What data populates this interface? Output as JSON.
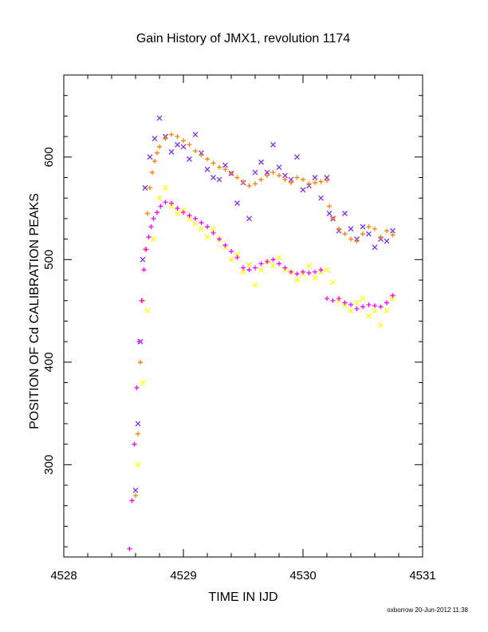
{
  "chart_data": {
    "type": "scatter",
    "title": "Gain History of JMX1, revolution 1174",
    "xlabel": "TIME IN IJD",
    "ylabel": "POSITION OF Cd CALIBRATION PEAKS",
    "xlim": [
      4528,
      4531
    ],
    "ylim": [
      210,
      680
    ],
    "xticks": [
      4528,
      4529,
      4530,
      4531
    ],
    "yticks": [
      300,
      400,
      500,
      600
    ],
    "grid": false,
    "series": [
      {
        "color": "#7f2fef",
        "marker": "x",
        "x": [
          4528.6,
          4528.62,
          4528.64,
          4528.66,
          4528.68,
          4528.72,
          4528.76,
          4528.8,
          4528.85,
          4528.9,
          4528.95,
          4529.0,
          4529.05,
          4529.1,
          4529.15,
          4529.2,
          4529.25,
          4529.3,
          4529.35,
          4529.4,
          4529.45,
          4529.5,
          4529.55,
          4529.6,
          4529.65,
          4529.7,
          4529.75,
          4529.8,
          4529.85,
          4529.9,
          4529.95,
          4530.0,
          4530.05,
          4530.1,
          4530.15,
          4530.2,
          4530.22,
          4530.25,
          4530.3,
          4530.35,
          4530.4,
          4530.45,
          4530.5,
          4530.55,
          4530.6,
          4530.65,
          4530.7,
          4530.75
        ],
        "y": [
          275,
          340,
          420,
          500,
          570,
          600,
          618,
          638,
          620,
          605,
          612,
          610,
          598,
          622,
          604,
          588,
          580,
          578,
          592,
          584,
          555,
          575,
          540,
          585,
          595,
          585,
          612,
          590,
          582,
          578,
          600,
          568,
          572,
          580,
          560,
          580,
          545,
          540,
          528,
          545,
          530,
          520,
          532,
          525,
          512,
          520,
          518,
          528
        ]
      },
      {
        "color": "#ff7f00",
        "marker": "+",
        "x": [
          4528.6,
          4528.62,
          4528.64,
          4528.66,
          4528.68,
          4528.7,
          4528.72,
          4528.74,
          4528.76,
          4528.78,
          4528.8,
          4528.85,
          4528.9,
          4528.95,
          4529.0,
          4529.05,
          4529.1,
          4529.15,
          4529.2,
          4529.25,
          4529.3,
          4529.35,
          4529.4,
          4529.45,
          4529.5,
          4529.55,
          4529.6,
          4529.65,
          4529.7,
          4529.75,
          4529.8,
          4529.85,
          4529.9,
          4529.95,
          4530.0,
          4530.05,
          4530.1,
          4530.15,
          4530.2,
          4530.22,
          4530.25,
          4530.3,
          4530.35,
          4530.4,
          4530.45,
          4530.5,
          4530.55,
          4530.6,
          4530.65,
          4530.7,
          4530.75
        ],
        "y": [
          270,
          330,
          400,
          460,
          510,
          545,
          570,
          585,
          596,
          604,
          610,
          618,
          622,
          620,
          616,
          612,
          606,
          602,
          598,
          594,
          590,
          588,
          584,
          580,
          576,
          572,
          574,
          578,
          582,
          585,
          582,
          578,
          575,
          580,
          578,
          574,
          575,
          576,
          577,
          552,
          540,
          530,
          525,
          520,
          518,
          525,
          532,
          530,
          522,
          528,
          524
        ]
      },
      {
        "color": "#ffff00",
        "marker": "x",
        "x": [
          4528.62,
          4528.66,
          4528.7,
          4528.75,
          4528.8,
          4528.85,
          4528.9,
          4528.95,
          4529.0,
          4529.05,
          4529.1,
          4529.15,
          4529.2,
          4529.25,
          4529.3,
          4529.35,
          4529.4,
          4529.45,
          4529.5,
          4529.55,
          4529.6,
          4529.65,
          4529.7,
          4529.75,
          4529.8,
          4529.85,
          4529.9,
          4529.95,
          4530.0,
          4530.05,
          4530.1,
          4530.15,
          4530.2,
          4530.25,
          4530.3,
          4530.35,
          4530.4,
          4530.45,
          4530.5,
          4530.55,
          4530.6,
          4530.65,
          4530.7,
          4530.75
        ],
        "y": [
          300,
          380,
          450,
          520,
          560,
          570,
          552,
          545,
          548,
          540,
          535,
          530,
          522,
          530,
          520,
          512,
          500,
          505,
          488,
          495,
          475,
          490,
          498,
          494,
          502,
          490,
          488,
          480,
          486,
          494,
          482,
          488,
          490,
          478,
          460,
          455,
          450,
          458,
          462,
          445,
          450,
          436,
          450,
          462
        ]
      },
      {
        "color": "#ff00ff",
        "marker": "+",
        "x": [
          4528.55,
          4528.57,
          4528.59,
          4528.61,
          4528.63,
          4528.65,
          4528.67,
          4528.69,
          4528.71,
          4528.73,
          4528.75,
          4528.78,
          4528.81,
          4528.85,
          4528.9,
          4528.95,
          4529.0,
          4529.05,
          4529.1,
          4529.15,
          4529.2,
          4529.25,
          4529.3,
          4529.35,
          4529.4,
          4529.45,
          4529.5,
          4529.55,
          4529.6,
          4529.65,
          4529.7,
          4529.75,
          4529.8,
          4529.85,
          4529.9,
          4529.95,
          4530.0,
          4530.05,
          4530.1,
          4530.15,
          4530.2,
          4530.25,
          4530.3,
          4530.35,
          4530.4,
          4530.45,
          4530.5,
          4530.55,
          4530.6,
          4530.65,
          4530.7,
          4530.75
        ],
        "y": [
          218,
          265,
          320,
          375,
          420,
          460,
          490,
          510,
          522,
          532,
          540,
          546,
          552,
          556,
          555,
          550,
          546,
          543,
          540,
          536,
          532,
          526,
          520,
          514,
          508,
          502,
          492,
          490,
          492,
          496,
          498,
          500,
          496,
          492,
          488,
          486,
          488,
          487,
          488,
          490,
          462,
          460,
          462,
          458,
          456,
          452,
          454,
          456,
          455,
          454,
          458,
          465
        ]
      }
    ]
  },
  "footer": "oxborrow 20-Jun-2012 11:38"
}
